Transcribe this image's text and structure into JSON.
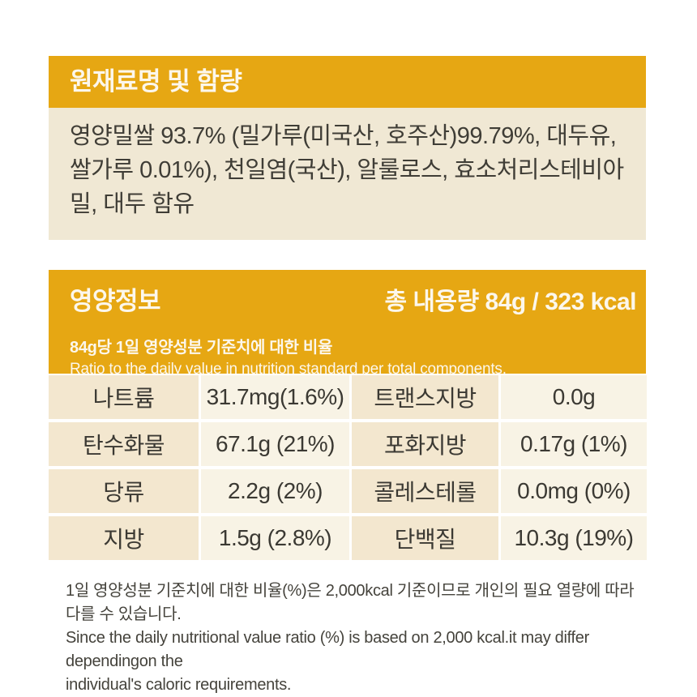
{
  "colors": {
    "accent_orange": "#E6A713",
    "ingredients_bg": "#F0E8D4",
    "label_cell_bg": "#F3E7CF",
    "value_cell_bg": "#F8F3E5",
    "dark_text": "#3B3933",
    "header_text": "#FCF7EC"
  },
  "ingredients": {
    "title": "원재료명 및 함량",
    "lines": [
      "영양밀쌀 93.7% (밀가루(미국산, 호주산)99.79%, 대두유,",
      "쌀가루 0.01%), 천일염(국산), 알룰로스, 효소처리스테비아",
      "밀, 대두 함유"
    ]
  },
  "nutrition": {
    "title": "영양정보",
    "total_amount": "총 내용량 84g  /  323 kcal",
    "subtitle_ko": "84g당 1일 영양성분 기준치에 대한 비율",
    "subtitle_en": "Ratio to the daily value in nutrition standard per total components.",
    "table": {
      "rows": [
        [
          {
            "label": "나트륨",
            "value": "31.7mg(1.6%)"
          },
          {
            "label": "트랜스지방",
            "value": "0.0g"
          }
        ],
        [
          {
            "label": "탄수화물",
            "value": "67.1g (21%)"
          },
          {
            "label": "포화지방",
            "value": "0.17g (1%)"
          }
        ],
        [
          {
            "label": "당류",
            "value": "2.2g (2%)"
          },
          {
            "label": "콜레스테롤",
            "value": "0.0mg (0%)"
          }
        ],
        [
          {
            "label": "지방",
            "value": "1.5g (2.8%)"
          },
          {
            "label": "단백질",
            "value": "10.3g (19%)"
          }
        ]
      ]
    },
    "footnote_lines": [
      "1일 영양성분 기준치에 대한 비율(%)은 2,000kcal 기준이므로 개인의 필요 열량에 따라 다를 수 있습니다.",
      "Since the daily nutritional value ratio (%) is based on 2,000 kcal.it may differ dependingon the",
      "individual's caloric requirements."
    ]
  }
}
